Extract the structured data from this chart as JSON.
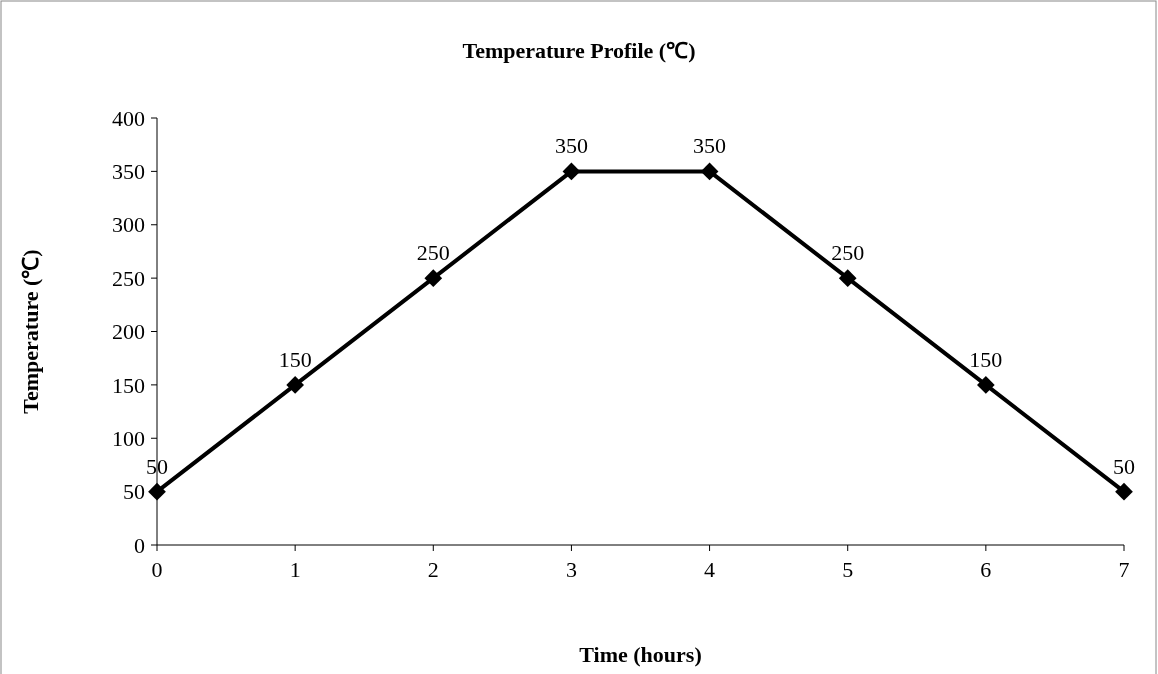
{
  "chart_data": {
    "type": "line",
    "title": "Temperature Profile (℃)",
    "xlabel": "Time (hours)",
    "ylabel": "Temperature (℃)",
    "x": [
      0,
      1,
      2,
      3,
      4,
      5,
      6,
      7
    ],
    "series": [
      {
        "color": "#000000",
        "values": [
          50,
          150,
          250,
          350,
          350,
          250,
          150,
          50
        ]
      }
    ],
    "xlim": [
      0,
      7
    ],
    "xticks": [
      0,
      1,
      2,
      3,
      4,
      5,
      6,
      7
    ],
    "ylim": [
      0,
      400
    ],
    "yticks": [
      0,
      50,
      100,
      150,
      200,
      250,
      300,
      350,
      400
    ],
    "marker": "diamond",
    "line_style": "solid",
    "data_labels": true,
    "grid": false
  }
}
